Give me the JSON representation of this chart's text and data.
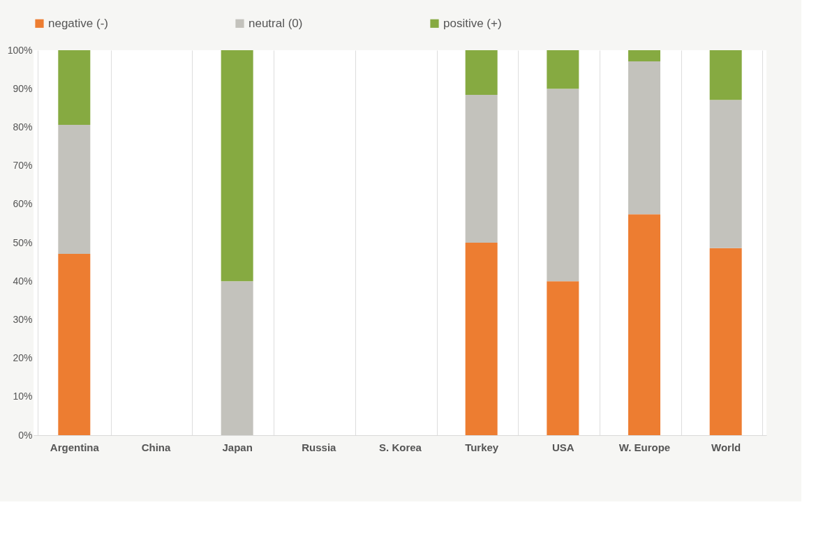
{
  "chart_data": {
    "type": "bar",
    "stacked": true,
    "legend": "top",
    "grid": "x",
    "categories": [
      "Argentina",
      "China",
      "Japan",
      "Russia",
      "S. Korea",
      "Turkey",
      "USA",
      "W. Europe",
      "World"
    ],
    "series": [
      {
        "name": "negative (-)",
        "color": "#ed7d31",
        "values": [
          47.1,
          null,
          0,
          null,
          null,
          50,
          40,
          57.4,
          48.6
        ]
      },
      {
        "name": "neutral (0)",
        "color": "#c3c2bc",
        "values": [
          33.5,
          null,
          40,
          null,
          null,
          38.4,
          50,
          39.7,
          38.5
        ]
      },
      {
        "name": "positive (+)",
        "color": "#86aa41",
        "values": [
          19.4,
          null,
          60,
          null,
          null,
          11.6,
          10,
          2.9,
          12.9
        ]
      }
    ],
    "ylim": [
      0,
      100
    ],
    "yticks": [
      {
        "value": 0,
        "label": "0%"
      },
      {
        "value": 10,
        "label": "10%"
      },
      {
        "value": 20,
        "label": "20%"
      },
      {
        "value": 30,
        "label": "30%"
      },
      {
        "value": 40,
        "label": "40%"
      },
      {
        "value": 50,
        "label": "50%"
      },
      {
        "value": 60,
        "label": "60%"
      },
      {
        "value": 70,
        "label": "70%"
      },
      {
        "value": 80,
        "label": "80%"
      },
      {
        "value": 90,
        "label": "90%"
      },
      {
        "value": 100,
        "label": "100%"
      }
    ]
  }
}
